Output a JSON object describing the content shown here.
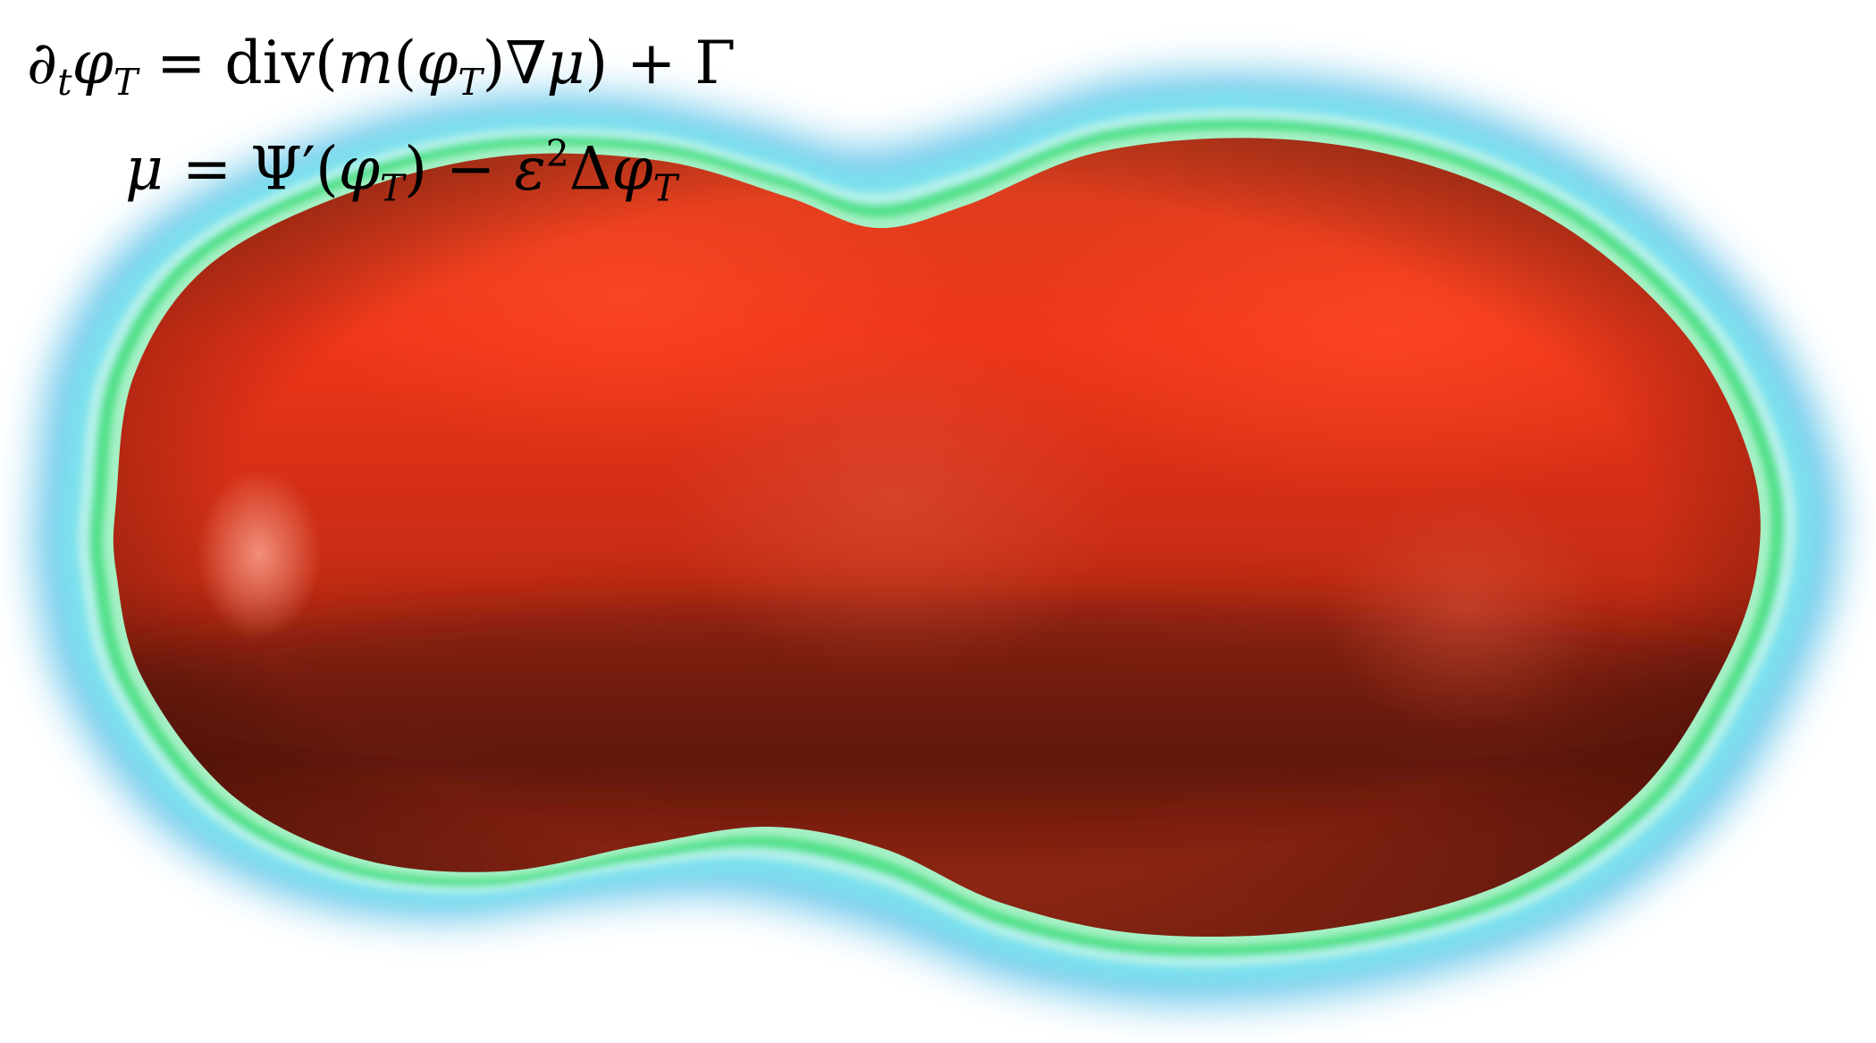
{
  "equations": {
    "line1": {
      "partial": "∂",
      "t": "t",
      "phi": "φ",
      "T": "T",
      "rhs_a": " = div(",
      "m": "m",
      "rhs_b": "(",
      "rhs_c": ")∇",
      "mu": "μ",
      "rhs_d": ") + Γ"
    },
    "line2": {
      "mu": "μ",
      "rhs_a": " = Ψ′(",
      "rhs_b": ") − ",
      "eps": "ε",
      "sq": "2",
      "delta": "Δ"
    }
  },
  "colors": {
    "core_light": "#f03418",
    "core_dark": "#6b1a0e",
    "green_band": "#4ee28c",
    "cyan_halo": "#6be0ea",
    "blue_halo": "#5bb7e8",
    "highlight": "#f48070"
  }
}
